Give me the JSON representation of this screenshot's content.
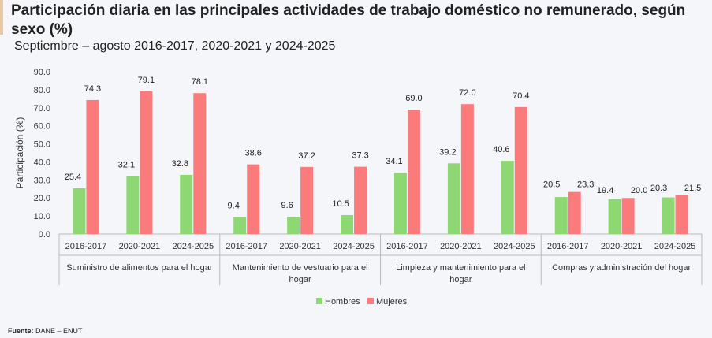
{
  "title": "Participación diaria en las principales actividades de trabajo doméstico no remunerado, según sexo (%)",
  "subtitle": "Septiembre – agosto 2016-2017, 2020-2021 y 2024-2025",
  "source_label": "Fuente:",
  "source_text": "DANE – ENUT",
  "colors": {
    "hombres": "#8ed873",
    "mujeres": "#fb7b7d"
  },
  "chart_data": {
    "type": "bar",
    "ylabel": "Participación (%)",
    "ylim": [
      0,
      90
    ],
    "yticks": [
      "0.0",
      "10.0",
      "20.0",
      "30.0",
      "40.0",
      "50.0",
      "60.0",
      "70.0",
      "80.0",
      "90.0"
    ],
    "groups": [
      {
        "name": "Suministro de alimentos para el hogar",
        "name_lines": [
          "Suministro de alimentos para el hogar"
        ]
      },
      {
        "name": "Mantenimiento de vestuario para el hogar",
        "name_lines": [
          "Mantenimiento de vestuario para el",
          "hogar"
        ]
      },
      {
        "name": "Limpieza y mantenimiento para el hogar",
        "name_lines": [
          "Limpieza y mantenimiento para el",
          "hogar"
        ]
      },
      {
        "name": "Compras y administración del hogar",
        "name_lines": [
          "Compras y administración del hogar"
        ]
      }
    ],
    "periods": [
      "2016-2017",
      "2020-2021",
      "2024-2025"
    ],
    "legend_position": "bottom-center",
    "series": [
      {
        "name": "Hombres",
        "values": [
          25.4,
          32.1,
          32.8,
          9.4,
          9.6,
          10.5,
          34.1,
          39.2,
          40.6,
          20.5,
          19.4,
          20.3
        ]
      },
      {
        "name": "Mujeres",
        "values": [
          74.3,
          79.1,
          78.1,
          38.6,
          37.2,
          37.3,
          69.0,
          72.0,
          70.4,
          23.3,
          20.0,
          21.5
        ]
      }
    ]
  }
}
